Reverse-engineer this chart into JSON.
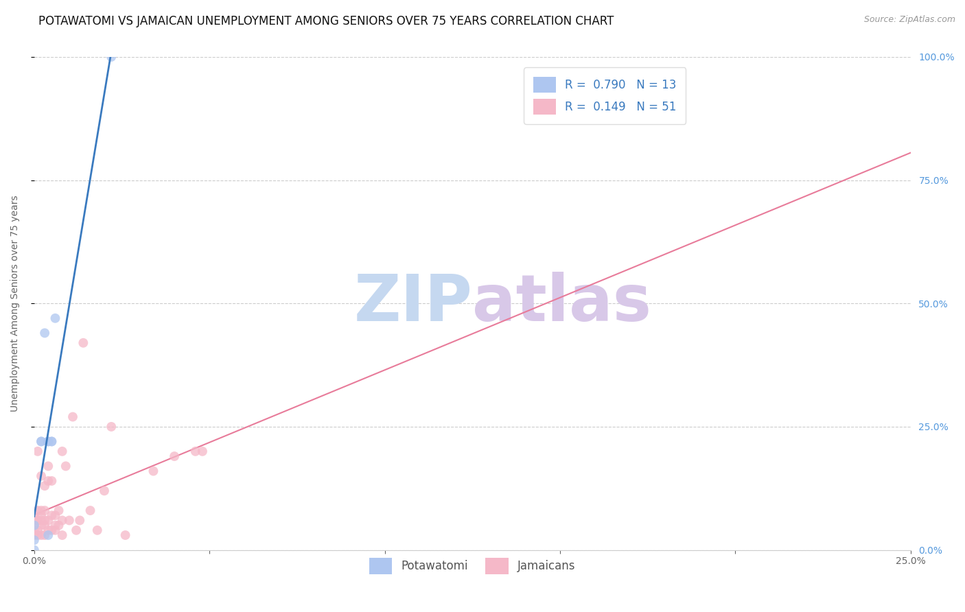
{
  "title": "POTAWATOMI VS JAMAICAN UNEMPLOYMENT AMONG SENIORS OVER 75 YEARS CORRELATION CHART",
  "source": "Source: ZipAtlas.com",
  "ylabel_label": "Unemployment Among Seniors over 75 years",
  "xlim": [
    0.0,
    0.25
  ],
  "ylim": [
    0.0,
    1.0
  ],
  "legend_entries": [
    {
      "label": "Potawatomi",
      "color": "#aec6f0",
      "R": "0.790",
      "N": "13"
    },
    {
      "label": "Jamaicans",
      "color": "#f5b8c8",
      "R": "0.149",
      "N": "51"
    }
  ],
  "potawatomi_x": [
    0.0,
    0.0,
    0.0,
    0.002,
    0.002,
    0.003,
    0.004,
    0.004,
    0.004,
    0.005,
    0.005,
    0.006,
    0.022
  ],
  "potawatomi_y": [
    0.0,
    0.02,
    0.05,
    0.22,
    0.22,
    0.44,
    0.22,
    0.22,
    0.03,
    0.22,
    0.22,
    0.47,
    1.0
  ],
  "jamaican_x": [
    0.0,
    0.0,
    0.0,
    0.0,
    0.0,
    0.001,
    0.001,
    0.001,
    0.001,
    0.001,
    0.002,
    0.002,
    0.002,
    0.002,
    0.002,
    0.002,
    0.003,
    0.003,
    0.003,
    0.003,
    0.003,
    0.004,
    0.004,
    0.004,
    0.004,
    0.005,
    0.005,
    0.005,
    0.006,
    0.006,
    0.006,
    0.007,
    0.007,
    0.008,
    0.008,
    0.008,
    0.009,
    0.01,
    0.011,
    0.012,
    0.013,
    0.014,
    0.016,
    0.018,
    0.02,
    0.022,
    0.026,
    0.034,
    0.04,
    0.046,
    0.048
  ],
  "jamaican_y": [
    0.03,
    0.04,
    0.05,
    0.06,
    0.07,
    0.03,
    0.04,
    0.06,
    0.08,
    0.2,
    0.03,
    0.05,
    0.06,
    0.07,
    0.08,
    0.15,
    0.03,
    0.05,
    0.06,
    0.08,
    0.13,
    0.04,
    0.06,
    0.14,
    0.17,
    0.04,
    0.07,
    0.14,
    0.04,
    0.05,
    0.07,
    0.05,
    0.08,
    0.03,
    0.06,
    0.2,
    0.17,
    0.06,
    0.27,
    0.04,
    0.06,
    0.42,
    0.08,
    0.04,
    0.12,
    0.25,
    0.03,
    0.16,
    0.19,
    0.2,
    0.2
  ],
  "potawatomi_line_color": "#3a7abf",
  "jamaican_line_color": "#e87b9a",
  "potawatomi_scatter_color": "#aec6f0",
  "jamaican_scatter_color": "#f5b8c8",
  "grid_color": "#cccccc",
  "watermark_zip": "ZIP",
  "watermark_atlas": "atlas",
  "watermark_color_zip": "#c5d8f0",
  "watermark_color_atlas": "#d8c8e8",
  "watermark_fontsize": 68,
  "title_fontsize": 12,
  "axis_label_fontsize": 10,
  "tick_fontsize": 10,
  "legend_fontsize": 12,
  "scatter_size": 100,
  "scatter_alpha": 0.75
}
